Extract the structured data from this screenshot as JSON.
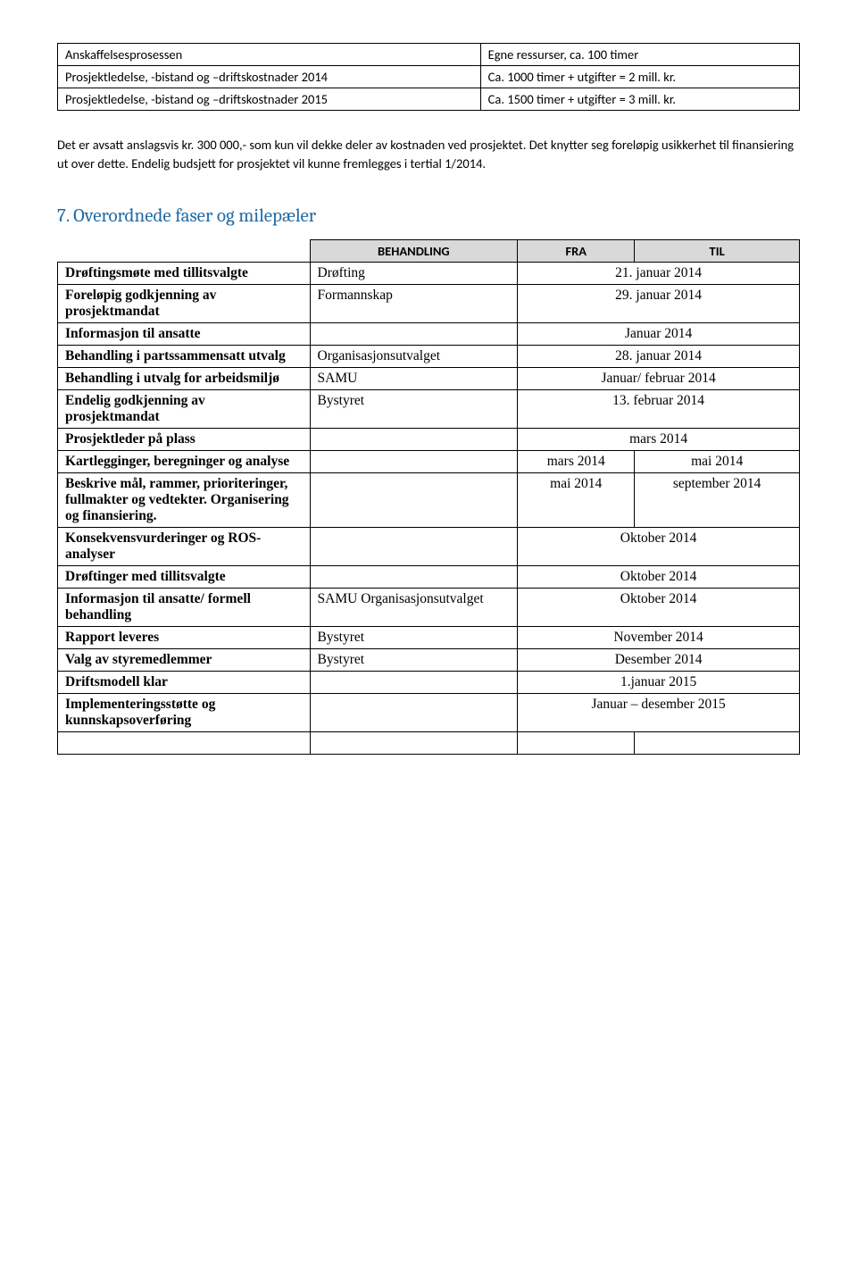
{
  "table1": {
    "rows": [
      {
        "l": "Anskaffelsesprosessen",
        "r": "Egne ressurser, ca. 100 timer"
      },
      {
        "l": "Prosjektledelse, -bistand og –driftskostnader 2014",
        "r": "Ca. 1000 timer + utgifter = 2 mill. kr."
      },
      {
        "l": "Prosjektledelse, -bistand og –driftskostnader 2015",
        "r": "Ca. 1500 timer + utgifter = 3 mill. kr."
      }
    ]
  },
  "paragraph": "Det er avsatt anslagsvis kr. 300 000,- som kun vil dekke deler av kostnaden ved prosjektet. Det knytter seg foreløpig usikkerhet til finansiering ut over dette. Endelig budsjett for prosjektet vil kunne fremlegges i tertial 1/2014.",
  "section_heading": "7.  Overordnede faser og milepæler",
  "milestones": {
    "headers": {
      "b": "BEHANDLING",
      "f": "FRA",
      "t": "TIL"
    },
    "rows": [
      {
        "label": "Drøftingsmøte med tillitsvalgte",
        "beh": "Drøfting",
        "span": "21. januar 2014"
      },
      {
        "label": "Foreløpig godkjenning av prosjektmandat",
        "beh": "Formannskap",
        "span": "29. januar 2014"
      },
      {
        "label": "Informasjon til ansatte",
        "beh": "",
        "span": "Januar 2014"
      },
      {
        "label": "Behandling i partssammensatt utvalg",
        "beh": "Organisasjonsutvalget",
        "span": "28. januar 2014"
      },
      {
        "label": "Behandling i utvalg for arbeidsmiljø",
        "beh": "SAMU",
        "span": "Januar/ februar 2014"
      },
      {
        "label": "Endelig godkjenning av prosjektmandat",
        "beh": "Bystyret",
        "span": "13. februar 2014"
      },
      {
        "label": "Prosjektleder på plass",
        "beh": "",
        "span": "mars 2014"
      },
      {
        "label": "Kartlegginger, beregninger og analyse",
        "beh": "",
        "fra": "mars 2014",
        "til": "mai 2014"
      },
      {
        "label": "Beskrive mål, rammer, prioriteringer, fullmakter og vedtekter. Organisering og finansiering.",
        "beh": "",
        "fra": "mai 2014",
        "til": "september 2014"
      },
      {
        "label": "Konsekvensvurderinger og ROS-analyser",
        "beh": "",
        "span": "Oktober 2014"
      },
      {
        "label": "Drøftinger med tillitsvalgte",
        "beh": "",
        "span": "Oktober 2014"
      },
      {
        "label": "Informasjon til ansatte/ formell behandling",
        "beh": "SAMU Organisasjonsutvalget",
        "span": "Oktober 2014"
      },
      {
        "label": "Rapport leveres",
        "beh": "Bystyret",
        "span": "November 2014"
      },
      {
        "label": "Valg av styremedlemmer",
        "beh": "Bystyret",
        "span": "Desember 2014"
      },
      {
        "label": "Driftsmodell klar",
        "beh": "",
        "span": "1.januar 2015"
      },
      {
        "label": "Implementeringsstøtte og kunnskapsoverføring",
        "beh": "",
        "span": "Januar – desember 2015"
      }
    ]
  }
}
